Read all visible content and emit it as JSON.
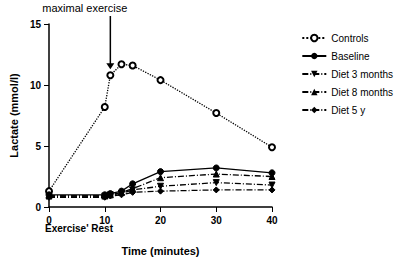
{
  "chart_data": {
    "type": "line",
    "x_label": "Time (minutes)",
    "y_label": "Lactate (mmol/l)",
    "x": [
      0,
      10,
      11,
      13,
      15,
      20,
      30,
      40
    ],
    "series": [
      {
        "name": "Controls",
        "color": "#000000",
        "marker": "open circle",
        "line_style": "dotted",
        "values": [
          1.3,
          8.2,
          10.8,
          11.7,
          11.6,
          10.4,
          7.7,
          4.9
        ]
      },
      {
        "name": "Baseline",
        "color": "#000000",
        "marker": "circle",
        "line_style": "solid",
        "values": [
          1.0,
          1.0,
          1.1,
          1.3,
          1.9,
          2.9,
          3.2,
          2.8
        ]
      },
      {
        "name": "Diet 3 months",
        "color": "#000000",
        "marker": "triangle-down",
        "line_style": "dashdot",
        "values": [
          0.9,
          0.9,
          1.0,
          1.1,
          1.4,
          1.7,
          2.0,
          1.8
        ]
      },
      {
        "name": "Diet 8 months",
        "color": "#000000",
        "marker": "triangle",
        "line_style": "dashdot",
        "values": [
          0.9,
          0.9,
          1.0,
          1.2,
          1.5,
          2.4,
          2.7,
          2.5
        ]
      },
      {
        "name": "Diet 5 y",
        "color": "#000000",
        "marker": "diamond",
        "line_style": "dashdot",
        "values": [
          0.8,
          0.8,
          0.9,
          1.0,
          1.2,
          1.3,
          1.4,
          1.4
        ]
      }
    ],
    "xlim": [
      0,
      40
    ],
    "xticks": [
      0,
      10,
      20,
      30,
      40
    ],
    "ylim": [
      0,
      15
    ],
    "yticks": [
      0,
      5,
      10,
      15
    ],
    "grid": false,
    "legend": "right",
    "annotations": [
      {
        "text": "maximal exercise",
        "x": 11,
        "y": 10.8
      },
      {
        "text": "Exercise' Rest"
      }
    ]
  }
}
